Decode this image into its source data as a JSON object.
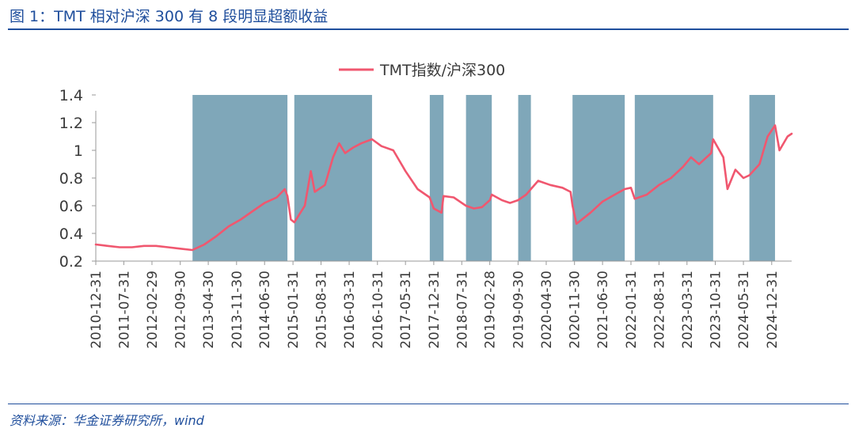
{
  "header": {
    "title": "图 1：TMT 相对沪深 300 有 8 段明显超额收益"
  },
  "footer": {
    "source": "资料来源：华金证券研究所，wind"
  },
  "chart_data": {
    "type": "line",
    "title": "",
    "xlabel": "",
    "ylabel": "",
    "ylim": [
      0.2,
      1.4
    ],
    "yticks": [
      "0.2",
      "0.4",
      "0.6",
      "0.8",
      "1",
      "1.2",
      "1.4"
    ],
    "xticks": [
      "2010-12-31",
      "2011-07-31",
      "2012-02-29",
      "2012-09-30",
      "2013-04-30",
      "2013-11-30",
      "2014-06-30",
      "2015-01-31",
      "2015-08-31",
      "2016-03-31",
      "2016-10-31",
      "2017-05-31",
      "2017-12-31",
      "2018-07-31",
      "2019-02-28",
      "2019-09-30",
      "2020-04-30",
      "2020-11-30",
      "2021-06-30",
      "2022-01-31",
      "2022-08-31",
      "2023-03-31",
      "2023-10-31",
      "2024-05-31",
      "2024-12-31"
    ],
    "x_range": [
      "2010-12-31",
      "2025-05-31"
    ],
    "legend": {
      "position": "top-center",
      "entries": [
        "TMT指数/沪深300"
      ]
    },
    "series_color": "#f0576f",
    "shade_color": "#7fa7b9",
    "shaded_periods": [
      [
        "2013-01-01",
        "2014-12-20"
      ],
      [
        "2015-02-10",
        "2016-09-20"
      ],
      [
        "2017-12-01",
        "2018-03-15"
      ],
      [
        "2018-09-01",
        "2019-03-15"
      ],
      [
        "2019-10-01",
        "2020-01-05"
      ],
      [
        "2020-11-15",
        "2021-12-15"
      ],
      [
        "2022-03-01",
        "2023-10-15"
      ],
      [
        "2024-07-15",
        "2025-01-25"
      ]
    ],
    "series": [
      {
        "name": "TMT指数/沪深300",
        "points": [
          [
            "2010-12-31",
            0.32
          ],
          [
            "2011-03-31",
            0.31
          ],
          [
            "2011-06-30",
            0.3
          ],
          [
            "2011-09-30",
            0.3
          ],
          [
            "2011-12-31",
            0.31
          ],
          [
            "2012-03-31",
            0.31
          ],
          [
            "2012-06-30",
            0.3
          ],
          [
            "2012-09-30",
            0.29
          ],
          [
            "2012-12-31",
            0.28
          ],
          [
            "2013-03-31",
            0.32
          ],
          [
            "2013-06-30",
            0.38
          ],
          [
            "2013-09-30",
            0.45
          ],
          [
            "2013-12-31",
            0.5
          ],
          [
            "2014-03-31",
            0.56
          ],
          [
            "2014-06-30",
            0.62
          ],
          [
            "2014-09-30",
            0.66
          ],
          [
            "2014-11-30",
            0.72
          ],
          [
            "2014-12-20",
            0.67
          ],
          [
            "2015-01-15",
            0.5
          ],
          [
            "2015-02-10",
            0.48
          ],
          [
            "2015-04-30",
            0.6
          ],
          [
            "2015-06-15",
            0.85
          ],
          [
            "2015-07-15",
            0.7
          ],
          [
            "2015-09-30",
            0.75
          ],
          [
            "2015-11-30",
            0.95
          ],
          [
            "2016-01-15",
            1.05
          ],
          [
            "2016-02-29",
            0.98
          ],
          [
            "2016-04-30",
            1.02
          ],
          [
            "2016-06-30",
            1.05
          ],
          [
            "2016-09-20",
            1.08
          ],
          [
            "2016-11-30",
            1.03
          ],
          [
            "2017-02-28",
            1.0
          ],
          [
            "2017-05-31",
            0.85
          ],
          [
            "2017-08-31",
            0.72
          ],
          [
            "2017-11-30",
            0.66
          ],
          [
            "2017-12-31",
            0.58
          ],
          [
            "2018-02-28",
            0.55
          ],
          [
            "2018-03-15",
            0.67
          ],
          [
            "2018-05-31",
            0.66
          ],
          [
            "2018-08-31",
            0.6
          ],
          [
            "2018-10-31",
            0.58
          ],
          [
            "2018-12-31",
            0.59
          ],
          [
            "2019-02-28",
            0.64
          ],
          [
            "2019-03-15",
            0.68
          ],
          [
            "2019-05-31",
            0.64
          ],
          [
            "2019-07-31",
            0.62
          ],
          [
            "2019-09-30",
            0.64
          ],
          [
            "2019-11-30",
            0.68
          ],
          [
            "2020-01-05",
            0.72
          ],
          [
            "2020-02-29",
            0.78
          ],
          [
            "2020-05-31",
            0.75
          ],
          [
            "2020-08-31",
            0.73
          ],
          [
            "2020-10-31",
            0.7
          ],
          [
            "2020-11-15",
            0.6
          ],
          [
            "2020-12-15",
            0.47
          ],
          [
            "2021-03-31",
            0.55
          ],
          [
            "2021-06-30",
            0.63
          ],
          [
            "2021-09-30",
            0.68
          ],
          [
            "2021-12-15",
            0.72
          ],
          [
            "2022-01-31",
            0.73
          ],
          [
            "2022-03-01",
            0.65
          ],
          [
            "2022-05-31",
            0.68
          ],
          [
            "2022-08-31",
            0.75
          ],
          [
            "2022-11-30",
            0.8
          ],
          [
            "2023-02-28",
            0.88
          ],
          [
            "2023-04-30",
            0.95
          ],
          [
            "2023-06-30",
            0.9
          ],
          [
            "2023-09-30",
            0.98
          ],
          [
            "2023-10-15",
            1.08
          ],
          [
            "2023-12-31",
            0.95
          ],
          [
            "2024-01-31",
            0.72
          ],
          [
            "2024-03-31",
            0.86
          ],
          [
            "2024-05-31",
            0.8
          ],
          [
            "2024-07-15",
            0.82
          ],
          [
            "2024-09-30",
            0.9
          ],
          [
            "2024-11-30",
            1.1
          ],
          [
            "2025-01-25",
            1.18
          ],
          [
            "2025-02-28",
            1.0
          ],
          [
            "2025-04-30",
            1.1
          ],
          [
            "2025-05-31",
            1.12
          ]
        ]
      }
    ]
  }
}
